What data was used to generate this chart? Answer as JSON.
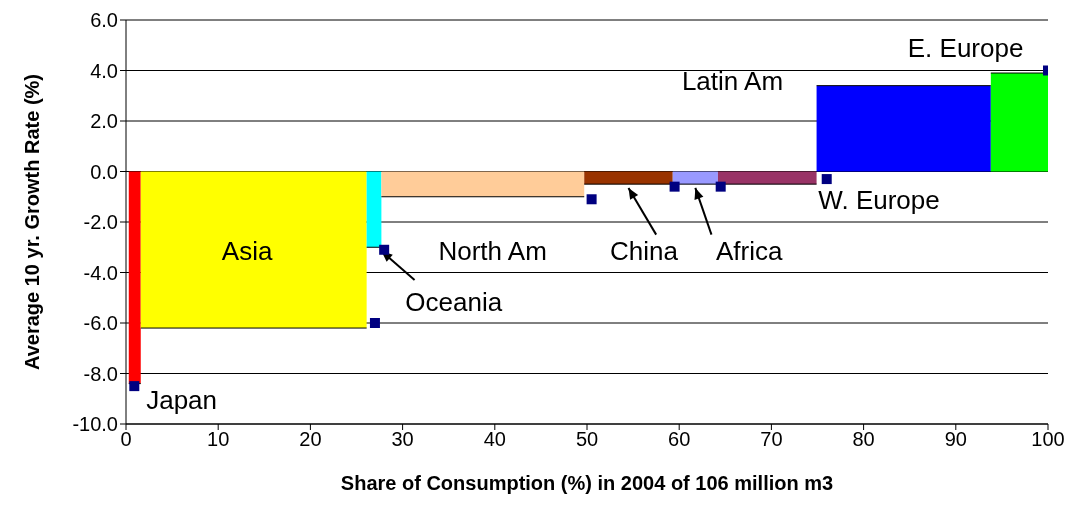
{
  "chart_data": {
    "type": "area",
    "xlabel": "Share of Consumption (%) in 2004 of 106 million m3",
    "ylabel": "Average 10 yr. Growth Rate (%)",
    "series": [
      {
        "color": "#ff0000",
        "x": [
          0.3,
          1.6
        ],
        "values": [
          -8.4,
          -8.4
        ]
      },
      {
        "color": "#ffff00",
        "x": [
          1.6,
          26.1
        ],
        "values": [
          -6.2,
          -6.2
        ]
      },
      {
        "color": "#00ffff",
        "x": [
          26.1,
          27.7
        ],
        "values": [
          -3.0,
          -3.0
        ]
      },
      {
        "color": "#ffcc99",
        "x": [
          27.7,
          49.7
        ],
        "values": [
          -1.0,
          -1.0
        ]
      },
      {
        "color": "#993300",
        "x": [
          49.7,
          59.3
        ],
        "values": [
          -0.5,
          -0.5
        ]
      },
      {
        "color": "#9999ff",
        "x": [
          59.3,
          64.2
        ],
        "values": [
          -0.5,
          -0.5
        ]
      },
      {
        "color": "#993366",
        "x": [
          64.2,
          74.9
        ],
        "values": [
          -0.5,
          -0.5
        ]
      },
      {
        "color": "#0000ff",
        "x": [
          74.9,
          93.8
        ],
        "values": [
          3.4,
          3.4
        ]
      },
      {
        "color": "#00ff00",
        "x": [
          93.8,
          100
        ],
        "values": [
          3.9,
          3.9
        ]
      },
      {
        "type": "scatter",
        "color": "#000080",
        "marker": "square",
        "x": [
          0.9,
          27,
          28,
          50.5,
          59.5,
          64.5,
          76,
          100
        ],
        "values": [
          -8.5,
          -6.0,
          -3.1,
          -1.1,
          -0.6,
          -0.6,
          -0.3,
          4.0
        ]
      }
    ],
    "xlim": [
      0,
      100
    ],
    "xticks": [
      0,
      10,
      20,
      30,
      40,
      50,
      60,
      70,
      80,
      90,
      100
    ],
    "ylim": [
      -10,
      6
    ],
    "yticks": [
      {
        "value": -10,
        "label": "-10.0"
      },
      {
        "value": -8,
        "label": "-8.0"
      },
      {
        "value": -6,
        "label": "-6.0"
      },
      {
        "value": -4,
        "label": "-4.0"
      },
      {
        "value": -2,
        "label": "-2.0"
      },
      {
        "value": 0,
        "label": "0.0"
      },
      {
        "value": 2,
        "label": "2.0"
      },
      {
        "value": 4,
        "label": "4.0"
      },
      {
        "value": 6,
        "label": "6.0"
      }
    ],
    "grid": "y",
    "annotations": [
      {
        "text": "Japan",
        "x": 0.95,
        "y": -8.4
      },
      {
        "text": "Asia",
        "x": 13.85,
        "y": -6.2
      },
      {
        "text": "Oceania",
        "x": 27.7,
        "y": -3.0
      },
      {
        "text": "North Am",
        "x": 38.7,
        "y": -1.0
      },
      {
        "text": "China",
        "x": 54.5,
        "y": -0.5
      },
      {
        "text": "Africa",
        "x": 61.75,
        "y": -0.5
      },
      {
        "text": "W. Europe",
        "x": 69.55,
        "y": -0.5
      },
      {
        "text": "Latin Am",
        "x": 74.9,
        "y": 3.4
      },
      {
        "text": "E. Europe",
        "x": 96.9,
        "y": 3.9
      }
    ]
  }
}
